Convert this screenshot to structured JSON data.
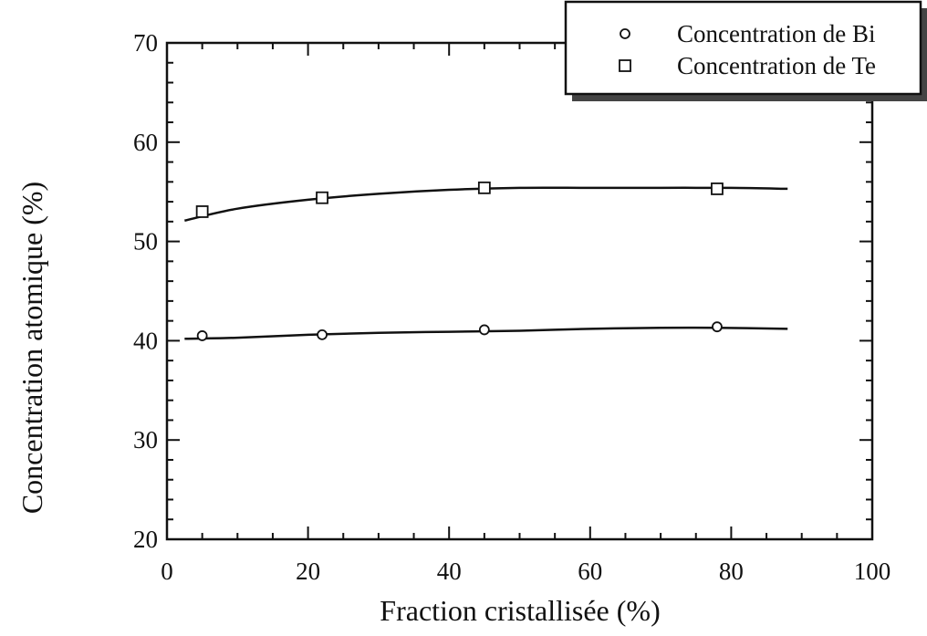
{
  "chart_data": {
    "type": "scatter",
    "title": "",
    "xlabel": "Fraction cristallisée (%)",
    "ylabel": "Concentration atomique (%)",
    "xlim": [
      0,
      100
    ],
    "ylim": [
      20,
      70
    ],
    "xticks": [
      0,
      20,
      40,
      60,
      80,
      100
    ],
    "yticks": [
      20,
      30,
      40,
      50,
      60,
      70
    ],
    "grid": false,
    "legend_position": "top-right",
    "series": [
      {
        "name": "Concentration de Bi",
        "marker": "circle",
        "x": [
          5,
          22,
          45,
          78
        ],
        "y": [
          40.5,
          40.6,
          41.1,
          41.4
        ],
        "fit_curve": {
          "x": [
            2.5,
            10,
            20,
            30,
            40,
            50,
            60,
            70,
            78,
            88
          ],
          "y": [
            40.2,
            40.3,
            40.6,
            40.8,
            40.9,
            41.0,
            41.2,
            41.3,
            41.3,
            41.2
          ]
        }
      },
      {
        "name": "Concentration de Te",
        "marker": "square",
        "x": [
          5,
          22,
          45,
          78
        ],
        "y": [
          53.0,
          54.4,
          55.4,
          55.3
        ],
        "fit_curve": {
          "x": [
            2.5,
            10,
            20,
            30,
            40,
            50,
            60,
            70,
            80,
            88
          ],
          "y": [
            52.1,
            53.3,
            54.2,
            54.8,
            55.2,
            55.4,
            55.4,
            55.4,
            55.4,
            55.3
          ]
        }
      }
    ]
  }
}
